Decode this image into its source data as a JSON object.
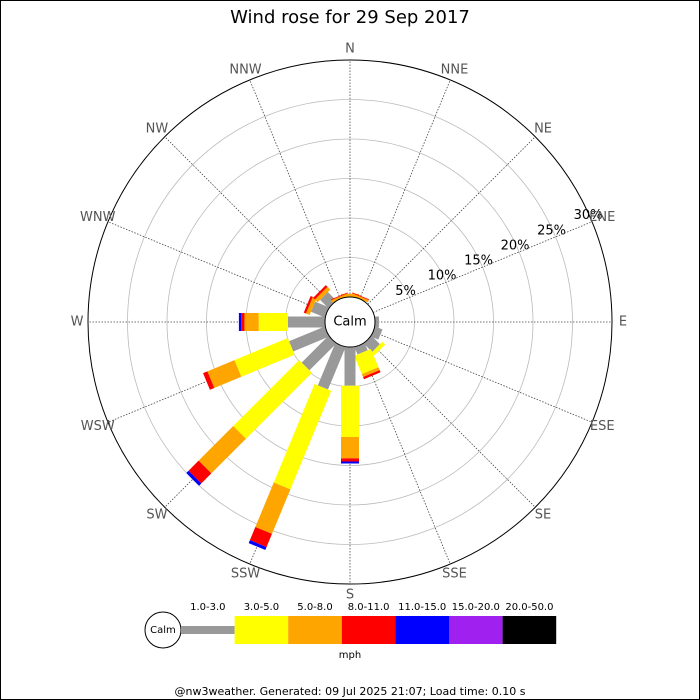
{
  "chart_data": {
    "type": "windrose",
    "title": "Wind rose for 29 Sep 2017",
    "directions": [
      "N",
      "NNE",
      "NE",
      "ENE",
      "E",
      "ESE",
      "SE",
      "SSE",
      "S",
      "SSW",
      "SW",
      "WSW",
      "W",
      "WNW",
      "NW",
      "NNW"
    ],
    "calm_label": "Calm",
    "unit_label": "mph",
    "footer": "@nw3weather. Generated: 09 Jul 2025 21:07; Load time: 0.10 s",
    "rlim": [
      0,
      30
    ],
    "rticks": [
      {
        "value": 5,
        "label": "5%"
      },
      {
        "value": 10,
        "label": "10%"
      },
      {
        "value": 15,
        "label": "15%"
      },
      {
        "value": 20,
        "label": "20%"
      },
      {
        "value": 25,
        "label": "25%"
      },
      {
        "value": 30,
        "label": "30%"
      }
    ],
    "series": [
      {
        "name": "1.0-3.0",
        "color": "#999999",
        "values": [
          0,
          0,
          0,
          0,
          0.5,
          1,
          1.5,
          1,
          4.9,
          5.8,
          4.8,
          4.9,
          4.7,
          1.9,
          1.5,
          0
        ]
      },
      {
        "name": "3.0-5.0",
        "color": "#ffff00",
        "values": [
          0,
          0,
          0,
          0,
          0,
          0,
          0.5,
          2.5,
          6.5,
          13.5,
          11.8,
          7.3,
          3.7,
          0,
          0,
          0
        ]
      },
      {
        "name": "5.0-8.0",
        "color": "#ffa500",
        "values": [
          0.4,
          0.3,
          0,
          0,
          0,
          0,
          0,
          0.4,
          2.7,
          6.1,
          6.2,
          3.7,
          1.8,
          0.5,
          0.5,
          0.3
        ]
      },
      {
        "name": "8.0-11.0",
        "color": "#ff0000",
        "values": [
          0,
          0.1,
          0,
          0,
          0,
          0,
          0,
          0.3,
          0.4,
          1.8,
          1.8,
          0.6,
          0.4,
          0.3,
          0.3,
          0.1
        ]
      },
      {
        "name": "11.0-15.0",
        "color": "#0000ff",
        "values": [
          0,
          0,
          0,
          0,
          0,
          0,
          0,
          0,
          0.25,
          0.4,
          0.4,
          0,
          0.3,
          0,
          0,
          0
        ]
      },
      {
        "name": "15.0-20.0",
        "color": "#a020f0",
        "values": [
          0,
          0,
          0,
          0,
          0,
          0,
          0,
          0,
          0,
          0,
          0,
          0,
          0,
          0,
          0,
          0
        ]
      },
      {
        "name": "20.0-50.0",
        "color": "#000000",
        "values": [
          0,
          0,
          0,
          0,
          0,
          0,
          0,
          0,
          0,
          0,
          0,
          0,
          0,
          0,
          0,
          0
        ]
      }
    ]
  }
}
